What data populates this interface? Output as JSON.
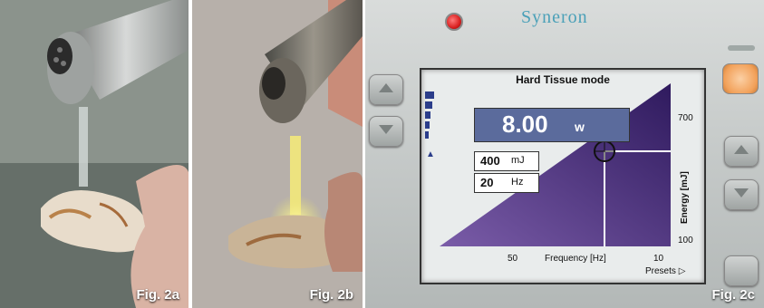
{
  "figures": [
    {
      "label": "Fig. 2a"
    },
    {
      "label": "Fig. 2b"
    },
    {
      "label": "Fig. 2c"
    }
  ],
  "device": {
    "brand": "Syneron",
    "mode_title": "Hard Tissue mode",
    "power_value": "8.00",
    "power_unit": "w",
    "energy_value": "400",
    "energy_unit": "mJ",
    "frequency_value": "20",
    "frequency_unit": "Hz",
    "axis": {
      "x_label": "Frequency [Hz]",
      "x_tick_low": "50",
      "x_tick_high": "10",
      "y_label": "Energy [mJ]",
      "y_tick_high": "700",
      "y_tick_low": "100"
    },
    "presets_label": "Presets"
  },
  "colors": {
    "lcd_purple": "#5a3a8a",
    "power_box": "#5b6b9c",
    "led_red": "#d91f1f",
    "preset_orange": "#f2a15a"
  }
}
